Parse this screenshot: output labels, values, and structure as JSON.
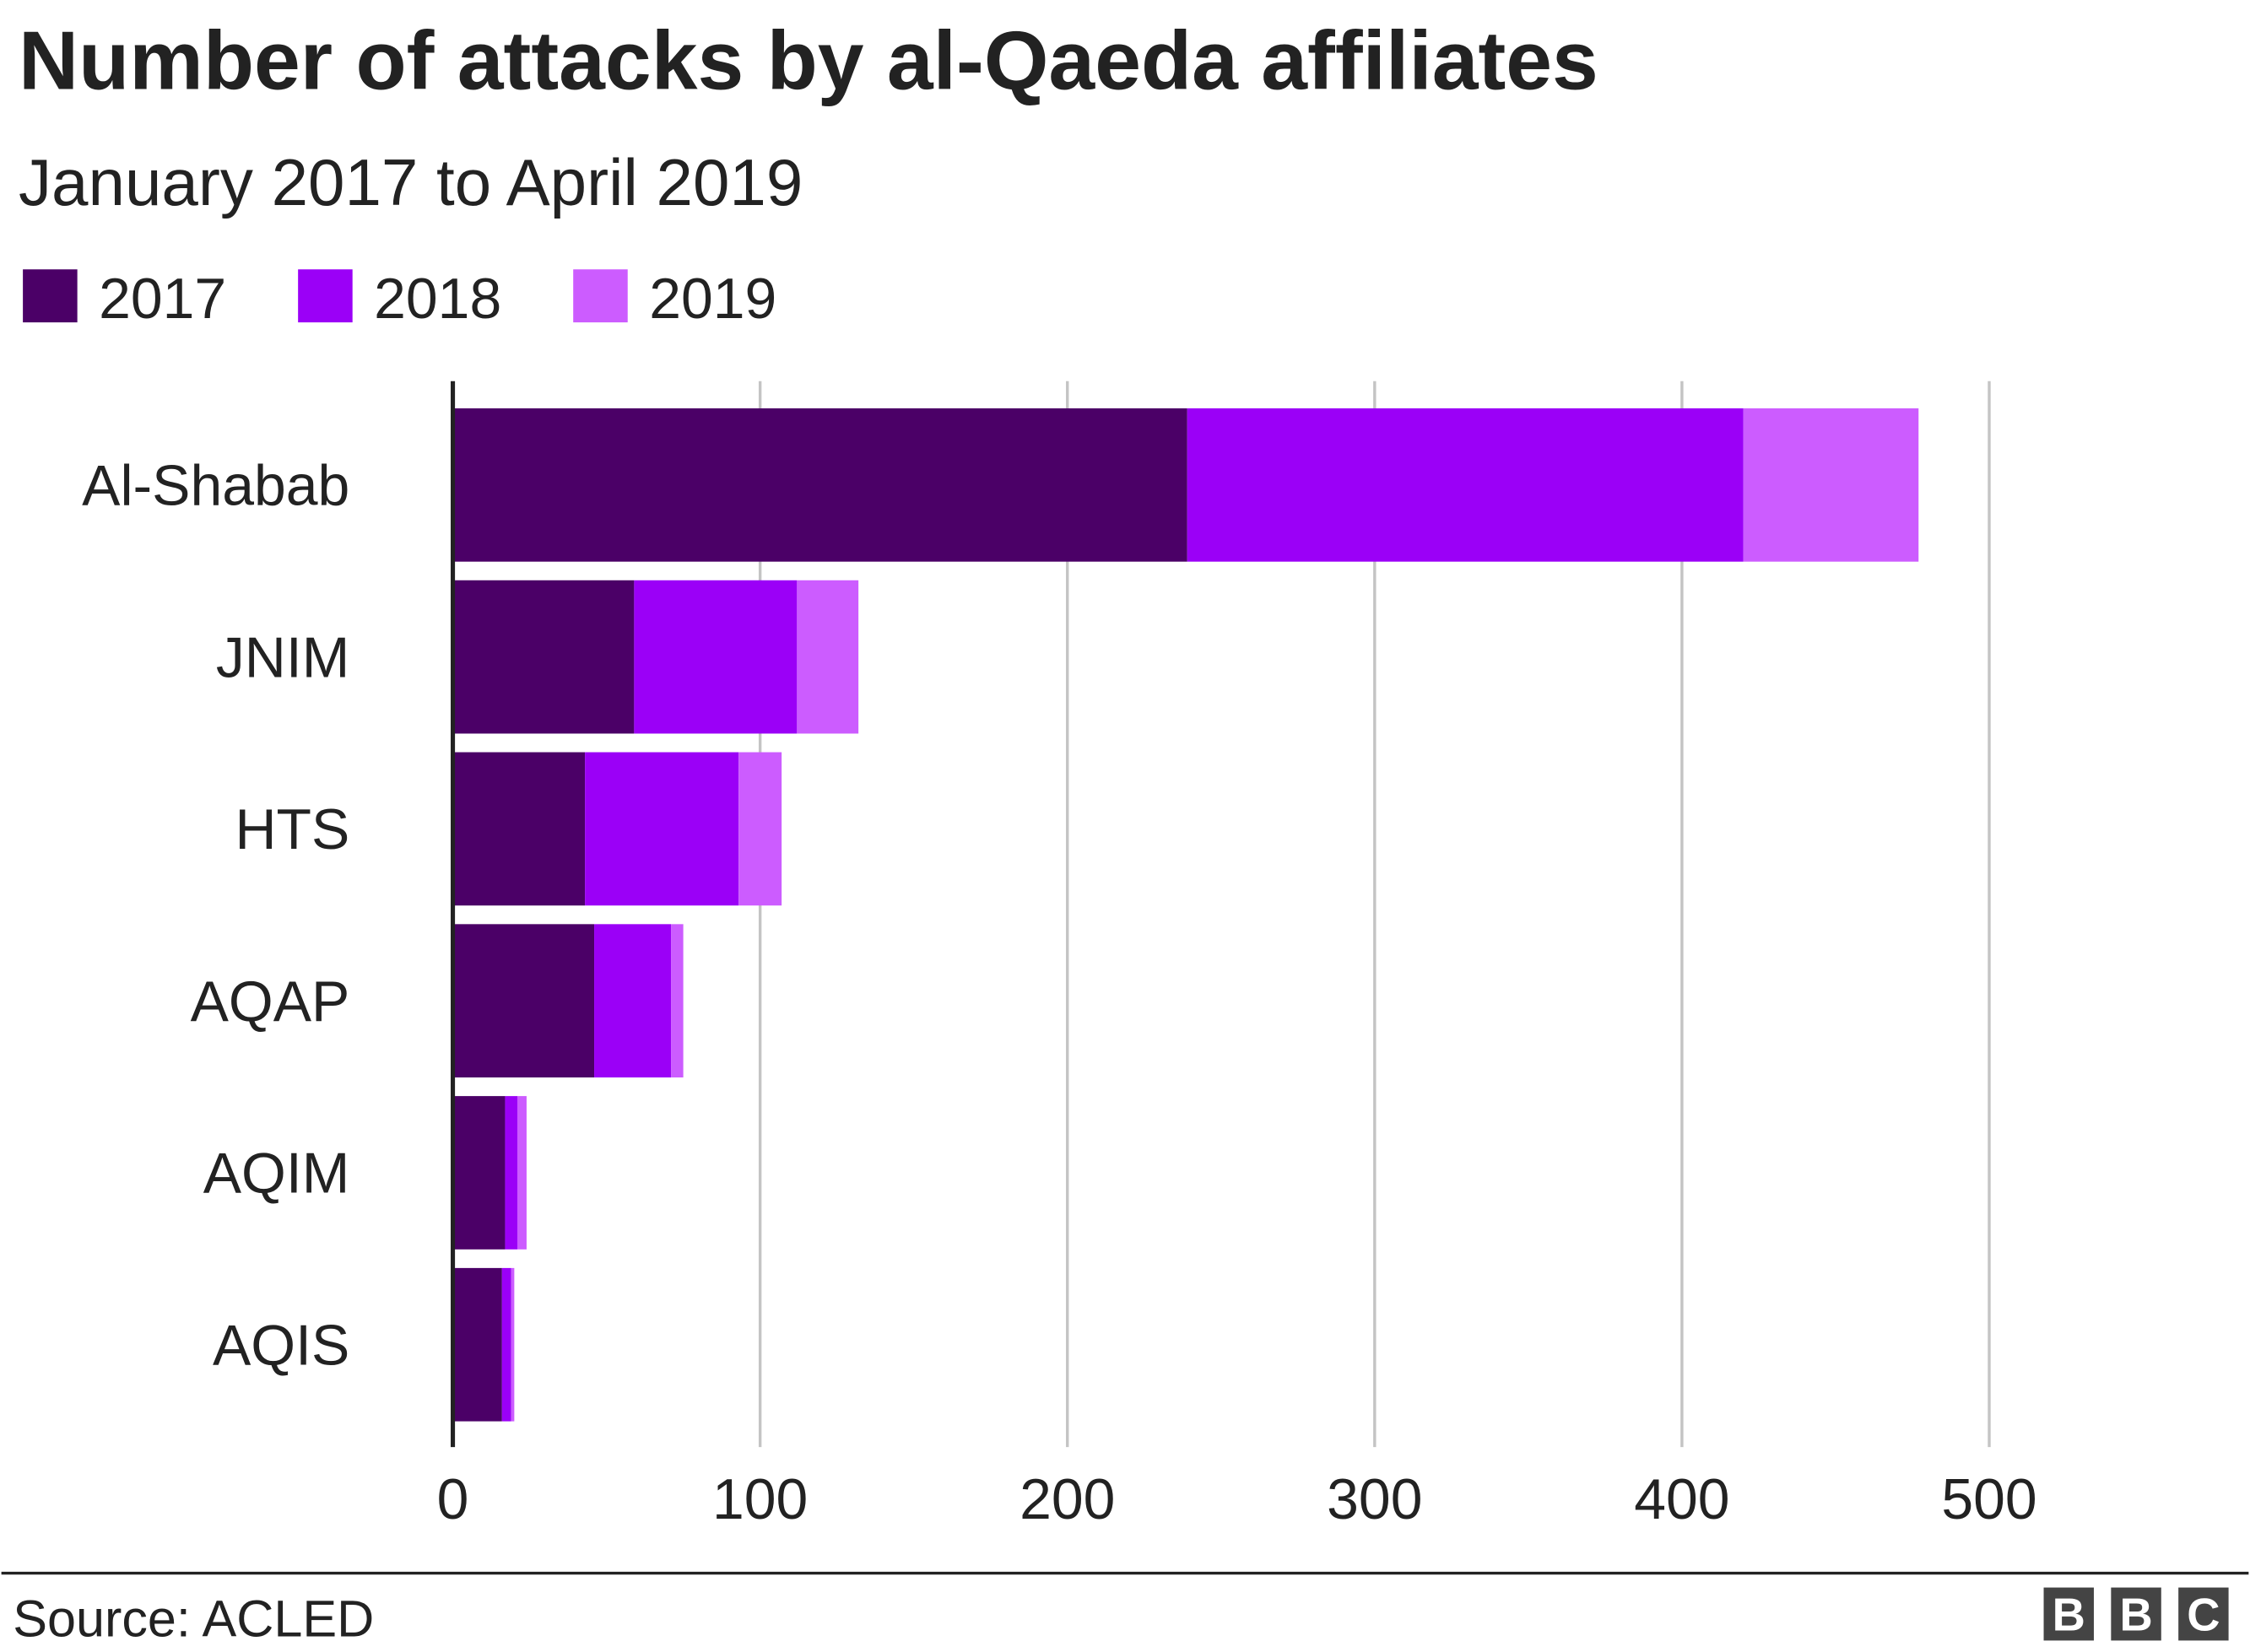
{
  "chart_data": {
    "type": "bar",
    "orientation": "horizontal",
    "stacked": true,
    "title": "Number of attacks by al-Qaeda affiliates",
    "subtitle": "January 2017 to April 2019",
    "categories": [
      "Al-Shabab",
      "JNIM",
      "HTS",
      "AQAP",
      "AQIM",
      "AQIS"
    ],
    "series": [
      {
        "name": "2017",
        "color": "#4b0067",
        "values": [
          239,
          59,
          43,
          46,
          17,
          16
        ]
      },
      {
        "name": "2018",
        "color": "#9b00f7",
        "values": [
          181,
          53,
          50,
          25,
          4,
          3
        ]
      },
      {
        "name": "2019",
        "color": "#cc5cff",
        "values": [
          57,
          20,
          14,
          4,
          3,
          1
        ]
      }
    ],
    "xlim": [
      0,
      500
    ],
    "xticks": [
      "0",
      "100",
      "200",
      "300",
      "400",
      "500"
    ],
    "grid": "vertical",
    "legend_position": "top-left",
    "source": "Source: ACLED",
    "logo": "BBC"
  }
}
